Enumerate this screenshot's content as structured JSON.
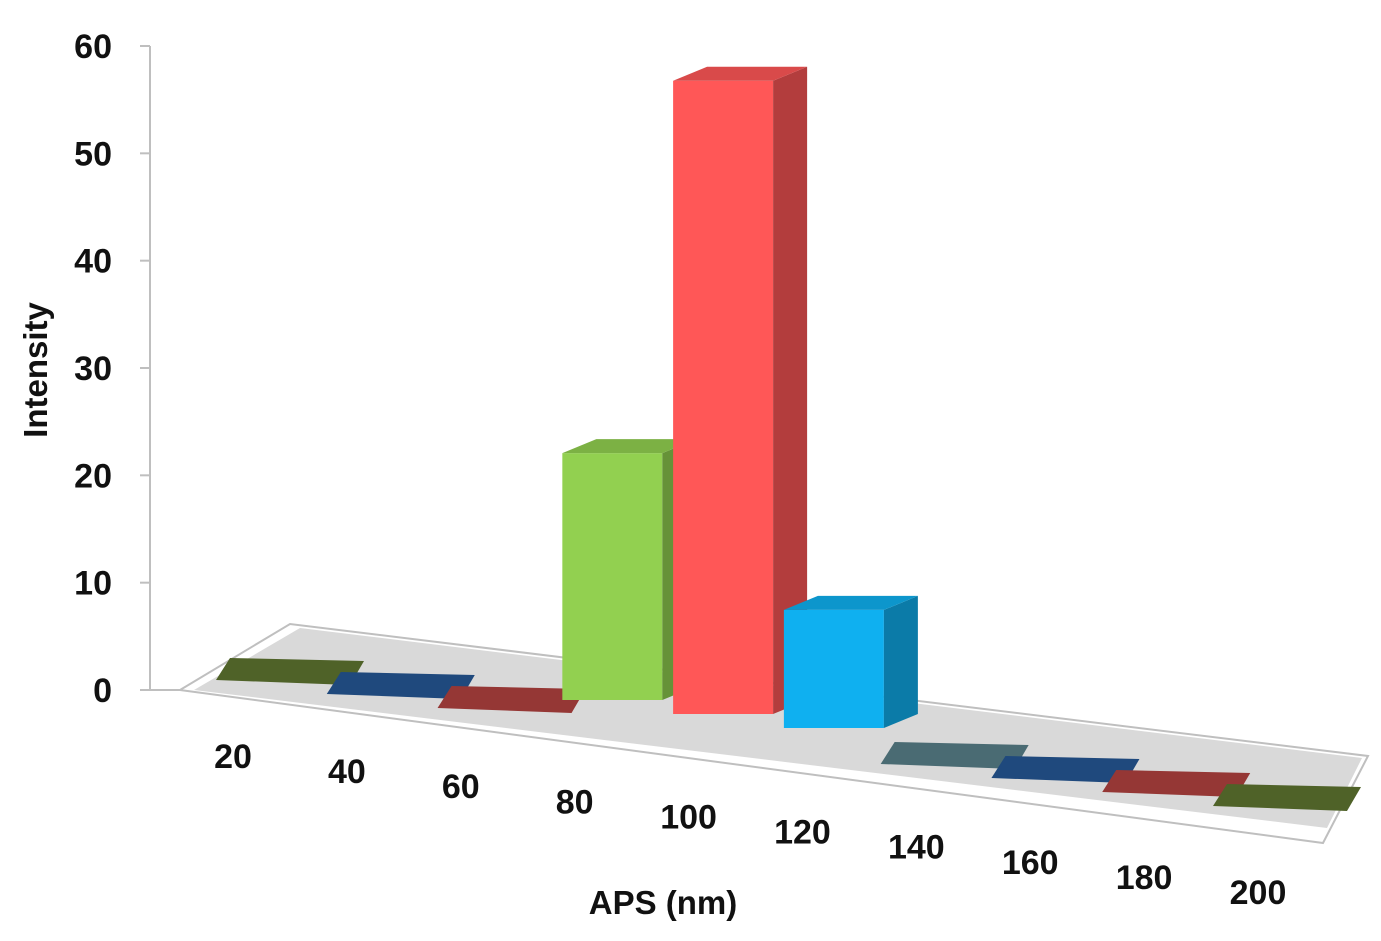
{
  "chart_data": {
    "type": "bar",
    "style": "3d-column",
    "title": "",
    "xlabel": "APS (nm)",
    "ylabel": "Intensity",
    "ylim": [
      0,
      60
    ],
    "yticks": [
      "0",
      "10",
      "20",
      "30",
      "40",
      "50",
      "60"
    ],
    "categories": [
      "20",
      "40",
      "60",
      "80",
      "100",
      "120",
      "140",
      "160",
      "180",
      "200"
    ],
    "values": [
      0,
      0,
      0,
      23,
      59,
      11,
      0,
      0,
      0,
      0
    ],
    "bar_colors": [
      "#4f6228",
      "#1f497d",
      "#953735",
      "#92d050",
      "#ff5757",
      "#0fb0f0",
      "#4a6b73",
      "#1f497d",
      "#953735",
      "#4f6228"
    ],
    "grid": false,
    "legend": "none"
  }
}
